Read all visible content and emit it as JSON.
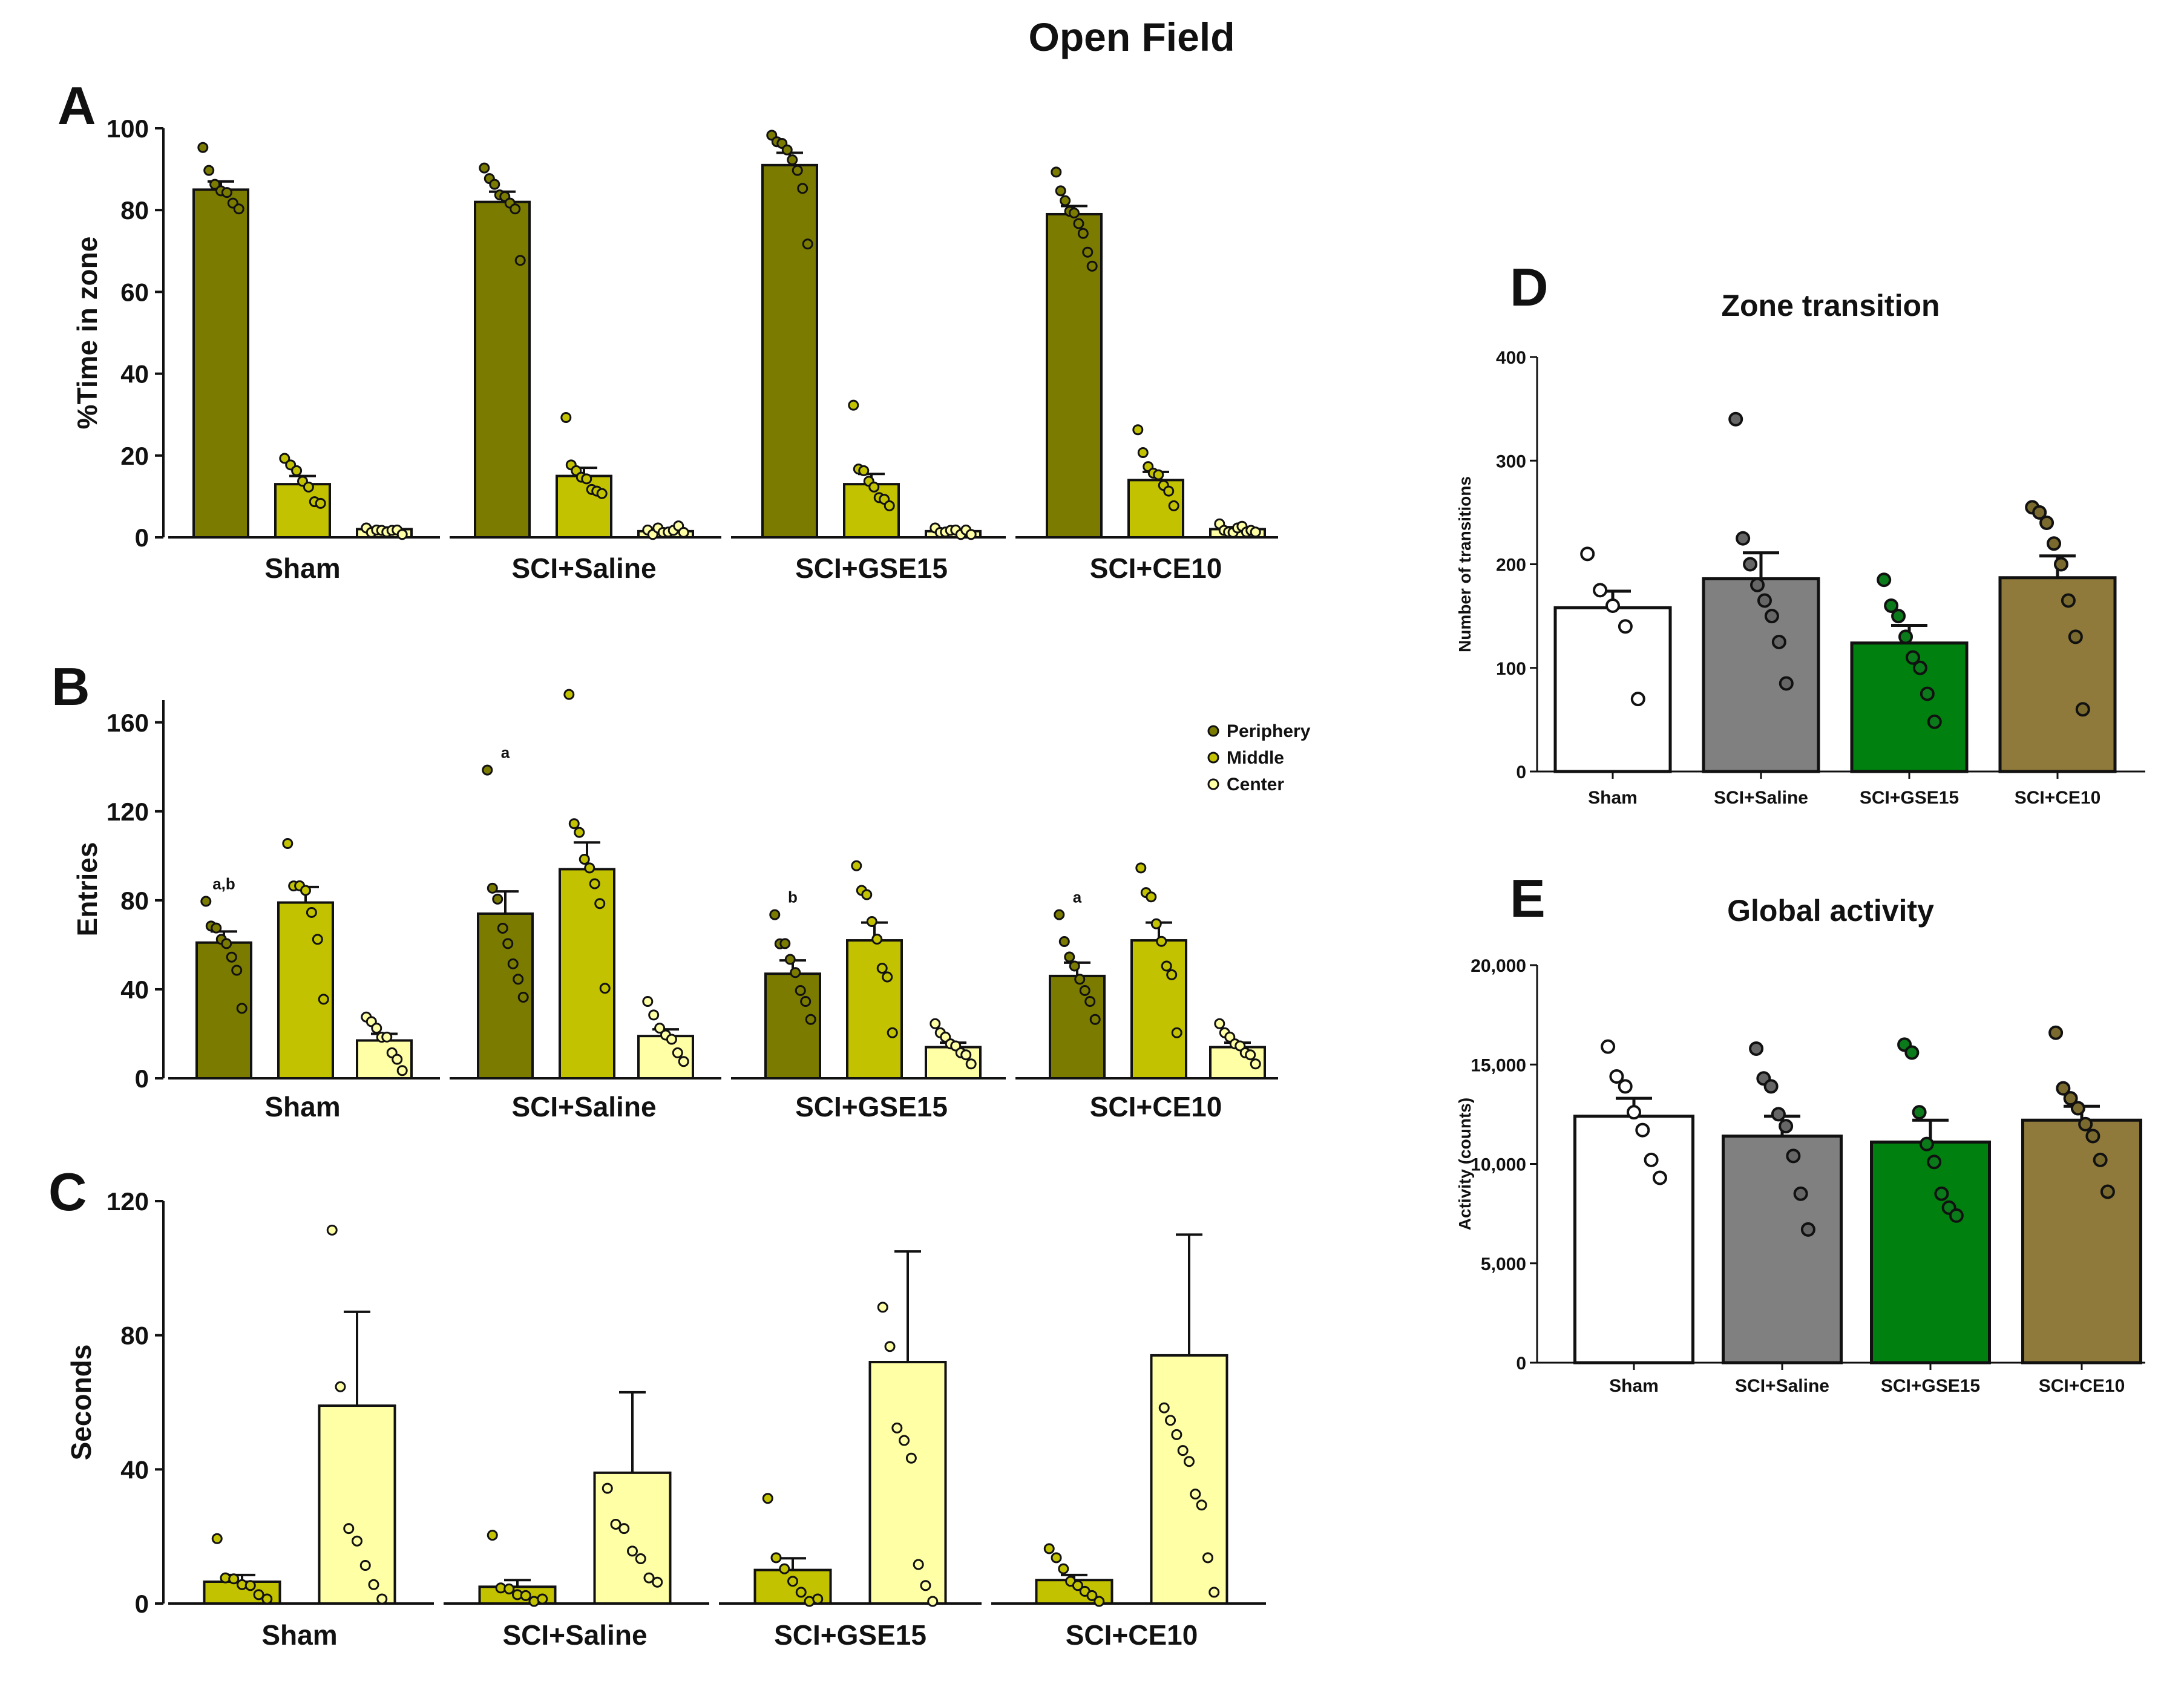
{
  "figure_title": "Open Field",
  "colors": {
    "periphery": "#7b7b00",
    "middle": "#c2c200",
    "center": "#ffffa6",
    "sham": "#ffffff",
    "saline": "#808080",
    "gse15": "#00800f",
    "ce10": "#8f7a3b",
    "axis": "#111111"
  },
  "legend": {
    "items": [
      {
        "label": "Periphery",
        "color": "#7b7b00"
      },
      {
        "label": "Middle",
        "color": "#c2c200"
      },
      {
        "label": "Center",
        "color": "#ffffa6"
      }
    ]
  },
  "chart_data": [
    {
      "panel": "A",
      "type": "bar",
      "ylabel": "%Time in zone",
      "ylim": [
        0,
        100
      ],
      "yticks": [
        "0",
        "20",
        "40",
        "60",
        "80",
        "100"
      ],
      "groups": [
        "Sham",
        "SCI+Saline",
        "SCI+GSE15",
        "SCI+CE10"
      ],
      "series": [
        {
          "name": "Periphery",
          "values": [
            85,
            82,
            91,
            79
          ],
          "sem": [
            2,
            2.5,
            3,
            2
          ],
          "points": [
            [
              95,
              90,
              86,
              85,
              84,
              82,
              80
            ],
            [
              90,
              88,
              86,
              84,
              83,
              82,
              80,
              68
            ],
            [
              98,
              97,
              96,
              95,
              92,
              90,
              85,
              72
            ],
            [
              89,
              85,
              82,
              80,
              79,
              77,
              74,
              70,
              66
            ]
          ]
        },
        {
          "name": "Middle",
          "values": [
            13,
            15,
            13,
            14
          ],
          "sem": [
            2,
            2,
            2.5,
            2
          ],
          "points": [
            [
              19,
              18,
              16,
              14,
              12,
              9,
              8
            ],
            [
              29,
              18,
              16,
              15,
              14,
              12,
              11,
              11
            ],
            [
              32,
              17,
              16,
              14,
              12,
              10,
              9,
              8
            ],
            [
              26,
              21,
              17,
              16,
              15,
              13,
              11,
              8
            ]
          ]
        },
        {
          "name": "Center",
          "values": [
            2,
            1.5,
            1.5,
            2
          ],
          "sem": [
            0.4,
            0.4,
            0.3,
            0.5
          ],
          "points": [
            [
              2,
              1.5,
              1.5,
              2,
              1,
              2,
              1.5,
              1
            ],
            [
              1.5,
              1,
              2,
              1.5,
              1,
              2,
              2.5,
              1.5
            ],
            [
              2,
              1.5,
              1,
              2,
              1.5,
              1,
              1.5,
              1
            ],
            [
              3,
              2,
              1,
              1.5,
              2,
              3,
              1,
              2,
              1
            ]
          ]
        }
      ]
    },
    {
      "panel": "B",
      "type": "bar",
      "ylabel": "Entries",
      "ylim": [
        0,
        170
      ],
      "yticks": [
        "0",
        "40",
        "80",
        "120",
        "160"
      ],
      "groups": [
        "Sham",
        "SCI+Saline",
        "SCI+GSE15",
        "SCI+CE10"
      ],
      "annotations": [
        "a,b",
        "a",
        "b",
        "a"
      ],
      "series": [
        {
          "name": "Periphery",
          "values": [
            61,
            74,
            47,
            46
          ],
          "sem": [
            5,
            10,
            6,
            6
          ],
          "points": [
            [
              79,
              69,
              67,
              63,
              60,
              55,
              48,
              32
            ],
            [
              138,
              86,
              80,
              68,
              60,
              52,
              44,
              37
            ],
            [
              73,
              61,
              60,
              54,
              47,
              40,
              34,
              27
            ],
            [
              73,
              62,
              54,
              51,
              44,
              40,
              34,
              27
            ]
          ]
        },
        {
          "name": "Middle",
          "values": [
            79,
            94,
            62,
            62
          ],
          "sem": [
            7,
            12,
            8,
            8
          ],
          "points": [
            [
              105,
              87,
              86,
              85,
              74,
              63,
              35
            ],
            [
              172,
              115,
              110,
              99,
              94,
              88,
              78,
              41
            ],
            [
              95,
              85,
              82,
              71,
              62,
              50,
              45,
              21
            ],
            [
              94,
              84,
              81,
              70,
              61,
              51,
              46,
              21
            ]
          ]
        },
        {
          "name": "Center",
          "values": [
            17,
            19,
            14,
            14
          ],
          "sem": [
            3,
            3,
            2,
            2
          ],
          "points": [
            [
              27,
              26,
              22,
              19,
              18,
              12,
              8,
              4
            ],
            [
              34,
              29,
              22,
              20,
              17,
              12,
              7
            ],
            [
              24,
              21,
              18,
              16,
              14,
              12,
              10,
              7
            ],
            [
              24,
              21,
              18,
              16,
              14,
              12,
              10,
              7
            ]
          ]
        }
      ]
    },
    {
      "panel": "C",
      "type": "bar",
      "ylabel": "Seconds",
      "ylim": [
        0,
        120
      ],
      "yticks": [
        "0",
        "40",
        "80",
        "120"
      ],
      "groups": [
        "Sham",
        "SCI+Saline",
        "SCI+GSE15",
        "SCI+CE10"
      ],
      "series": [
        {
          "name": "Middle",
          "values": [
            6.5,
            5,
            10,
            7
          ],
          "sem": [
            2,
            2,
            3.5,
            1.5
          ],
          "points": [
            [
              19,
              8,
              7,
              6,
              5,
              3,
              1
            ],
            [
              20,
              5,
              4,
              3,
              2,
              1,
              1
            ],
            [
              31,
              14,
              10,
              7,
              3,
              1,
              1
            ],
            [
              16,
              14,
              10,
              7,
              5,
              4,
              2,
              1
            ]
          ]
        },
        {
          "name": "Center",
          "values": [
            59,
            39,
            72,
            74
          ],
          "sem": [
            28,
            24,
            33,
            36
          ],
          "points": [
            [
              111,
              65,
              22,
              19,
              11,
              6,
              1
            ],
            [
              34,
              24,
              22,
              16,
              13,
              8,
              6
            ],
            [
              88,
              77,
              52,
              49,
              43,
              12,
              5,
              1
            ],
            [
              58,
              55,
              50,
              46,
              42,
              33,
              29,
              14,
              3
            ]
          ]
        }
      ]
    },
    {
      "panel": "D",
      "type": "bar",
      "title": "Zone transition",
      "ylabel": "Number of transitions",
      "ylim": [
        0,
        400
      ],
      "yticks": [
        "0",
        "100",
        "200",
        "300",
        "400"
      ],
      "categories": [
        "Sham",
        "SCI+Saline",
        "SCI+GSE15",
        "SCI+CE10"
      ],
      "values": [
        158,
        186,
        124,
        187
      ],
      "sem": [
        16,
        25,
        17,
        21
      ],
      "points": [
        [
          210,
          175,
          160,
          140,
          70
        ],
        [
          340,
          225,
          200,
          180,
          165,
          150,
          125,
          85
        ],
        [
          185,
          160,
          150,
          130,
          110,
          100,
          75,
          48
        ],
        [
          255,
          250,
          240,
          220,
          200,
          165,
          130,
          60
        ]
      ]
    },
    {
      "panel": "E",
      "type": "bar",
      "title": "Global activity",
      "ylabel": "Activity (counts)",
      "ylim": [
        0,
        20000
      ],
      "yticks": [
        "0",
        "5,000",
        "10,000",
        "15,000",
        "20,000"
      ],
      "categories": [
        "Sham",
        "SCI+Saline",
        "SCI+GSE15",
        "SCI+CE10"
      ],
      "values": [
        12400,
        11400,
        11100,
        12200
      ],
      "sem": [
        900,
        1000,
        1100,
        700
      ],
      "points": [
        [
          15900,
          14400,
          13900,
          12600,
          11700,
          10200,
          9300
        ],
        [
          15800,
          14300,
          13900,
          12500,
          11900,
          10400,
          8500,
          6700
        ],
        [
          16000,
          15600,
          12600,
          11000,
          10100,
          8500,
          7800,
          7400
        ],
        [
          16600,
          13800,
          13300,
          12800,
          12000,
          11400,
          10200,
          8600
        ]
      ]
    }
  ]
}
